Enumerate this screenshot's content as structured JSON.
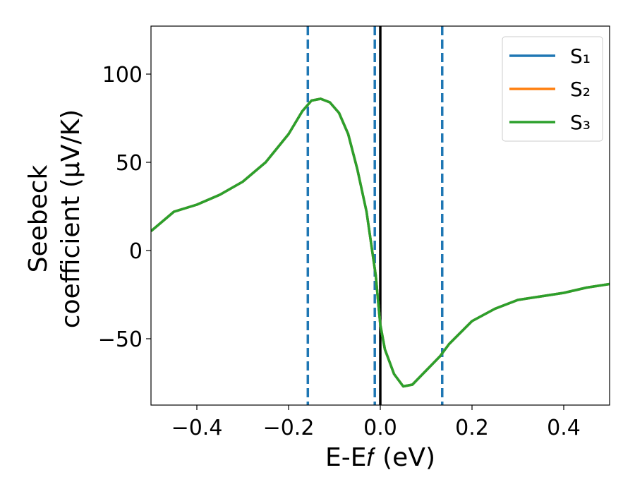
{
  "chart_data": {
    "type": "line",
    "xlabel": "E-E𝑓 (eV)",
    "ylabel": [
      "Seebeck",
      "coefficient  (μV/K)"
    ],
    "x": [
      -0.5,
      -0.45,
      -0.4,
      -0.35,
      -0.3,
      -0.25,
      -0.2,
      -0.17,
      -0.15,
      -0.13,
      -0.11,
      -0.09,
      -0.07,
      -0.05,
      -0.03,
      -0.01,
      0,
      0.01,
      0.03,
      0.05,
      0.07,
      0.1,
      0.13,
      0.15,
      0.2,
      0.25,
      0.3,
      0.35,
      0.4,
      0.45,
      0.5
    ],
    "series": [
      {
        "name": "S₁",
        "color": "#1f77b4",
        "values": [
          11,
          22,
          26,
          31.6,
          39,
          50,
          66,
          79,
          85,
          86,
          84,
          78,
          66,
          46,
          22,
          -14,
          -42,
          -56,
          -70,
          -77,
          -76,
          -68,
          -60,
          -53,
          -40,
          -33,
          -28,
          -26,
          -24,
          -21,
          -19
        ]
      },
      {
        "name": "S₂",
        "color": "#ff7f0e",
        "values": [
          11,
          22,
          26,
          31.6,
          39,
          50,
          66,
          79,
          85,
          86,
          84,
          78,
          66,
          46,
          22,
          -14,
          -42,
          -56,
          -70,
          -77,
          -76,
          -68,
          -60,
          -53,
          -40,
          -33,
          -28,
          -26,
          -24,
          -21,
          -19
        ]
      },
      {
        "name": "S₃",
        "color": "#2ca02c",
        "values": [
          11,
          22,
          26,
          31.6,
          39,
          50,
          66,
          79,
          85,
          86,
          84,
          78,
          66,
          46,
          22,
          -14,
          -42,
          -56,
          -70,
          -77,
          -76,
          -68,
          -60,
          -53,
          -40,
          -33,
          -28,
          -26,
          -24,
          -21,
          -19
        ]
      }
    ],
    "xlim": [
      -0.5,
      0.5
    ],
    "ylim": [
      -87.6,
      127.2
    ],
    "xticks": [
      {
        "value": -0.4,
        "label": "−0.4"
      },
      {
        "value": -0.2,
        "label": "−0.2"
      },
      {
        "value": 0,
        "label": "0.0"
      },
      0.2,
      0.4
    ],
    "yticks": [
      {
        "value": -50,
        "label": "−50"
      },
      0,
      50,
      100
    ],
    "vlines": [
      -0.158,
      -0.012,
      0.135
    ],
    "vline_color": "#1f77b4",
    "zero_line": 0,
    "zero_line_color": "#000000",
    "legend": "upper right",
    "grid": false
  }
}
